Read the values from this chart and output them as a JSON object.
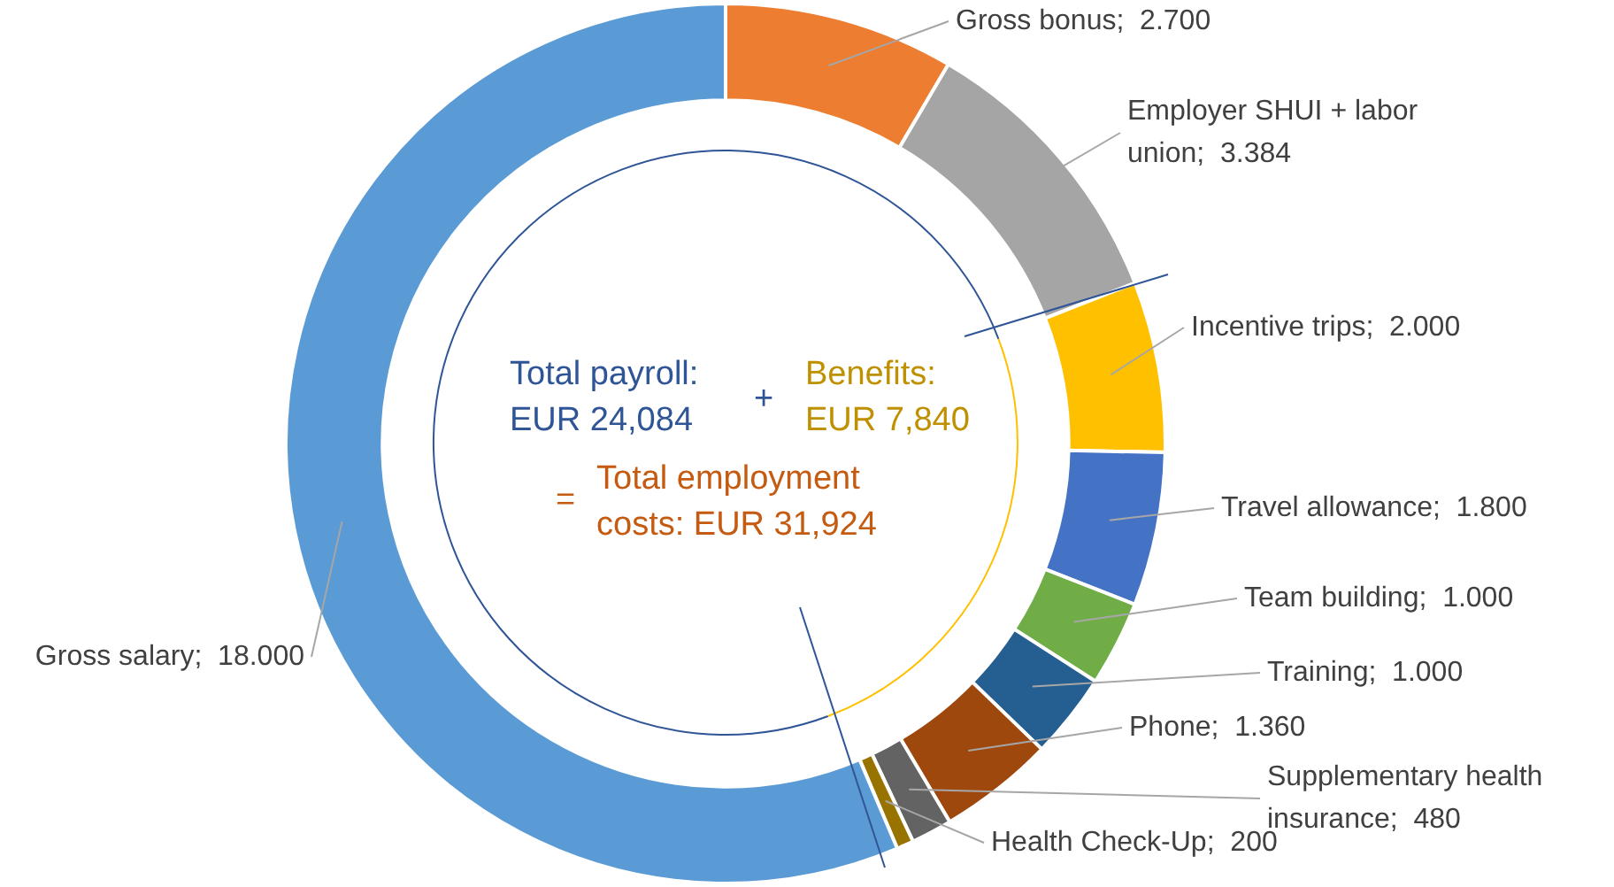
{
  "chart_data": {
    "type": "donut",
    "categories": [
      "Gross bonus",
      "Employer SHUI + labor union",
      "Incentive trips",
      "Travel allowance",
      "Team building",
      "Training",
      "Phone",
      "Supplementary health insurance",
      "Health Check-Up",
      "Gross salary"
    ],
    "values": [
      2700,
      3384,
      2000,
      1800,
      1000,
      1000,
      1360,
      480,
      200,
      18000
    ],
    "value_labels": [
      "2.700",
      "3.384",
      "2.000",
      "1.800",
      "1.000",
      "1.000",
      "1.360",
      "480",
      "200",
      "18.000"
    ],
    "colors": [
      "#ed7d31",
      "#a5a5a5",
      "#ffc000",
      "#4472c4",
      "#70ad47",
      "#255e91",
      "#9e480e",
      "#636363",
      "#997300",
      "#5b9bd5"
    ],
    "annotations": [
      "Total payroll: EUR 24,084",
      "+",
      "Benefits: EUR 7,840",
      "=",
      "Total employment costs: EUR 31,924"
    ],
    "legend": false
  }
}
